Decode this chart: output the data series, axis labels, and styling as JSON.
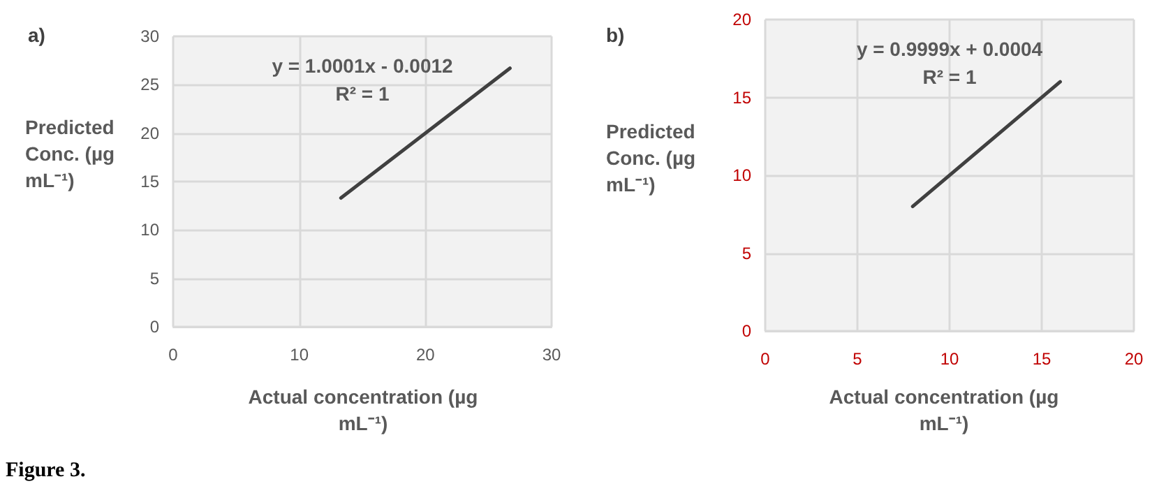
{
  "chart_data": [
    {
      "type": "line",
      "title": "a)",
      "xlabel": "Actual concentration (µg mL⁻¹)",
      "ylabel": "Predicted Conc. (µg mL⁻¹)",
      "annotations": [
        "y = 1.0001x - 0.0012",
        "R² = 1",
        "Figure 3."
      ],
      "x": [
        13.3,
        26.7
      ],
      "series": [
        {
          "color": "#404040",
          "values": [
            13.3,
            26.7
          ]
        }
      ],
      "xlim": [
        0,
        30
      ],
      "xticks": [
        0,
        10,
        20,
        30
      ],
      "ylim": [
        0,
        30
      ],
      "yticks": [
        0,
        5,
        10,
        15,
        20,
        25,
        30
      ],
      "grid": true,
      "marker": "none",
      "line_style": "solid"
    },
    {
      "type": "line",
      "title": "b)",
      "xlabel": "Actual concentration (µg mL⁻¹)",
      "ylabel": "Predicted Conc. (µg mL⁻¹)",
      "annotations": [
        "y = 0.9999x + 0.0004",
        "R² = 1"
      ],
      "x": [
        8,
        16
      ],
      "series": [
        {
          "color": "#404040",
          "values": [
            8,
            16
          ]
        }
      ],
      "xlim": [
        0,
        20
      ],
      "xticks": [
        0,
        5,
        10,
        15,
        20
      ],
      "ylim": [
        0,
        20
      ],
      "yticks": [
        0,
        5,
        10,
        15,
        20
      ],
      "grid": true,
      "marker": "none",
      "line_style": "solid"
    }
  ]
}
